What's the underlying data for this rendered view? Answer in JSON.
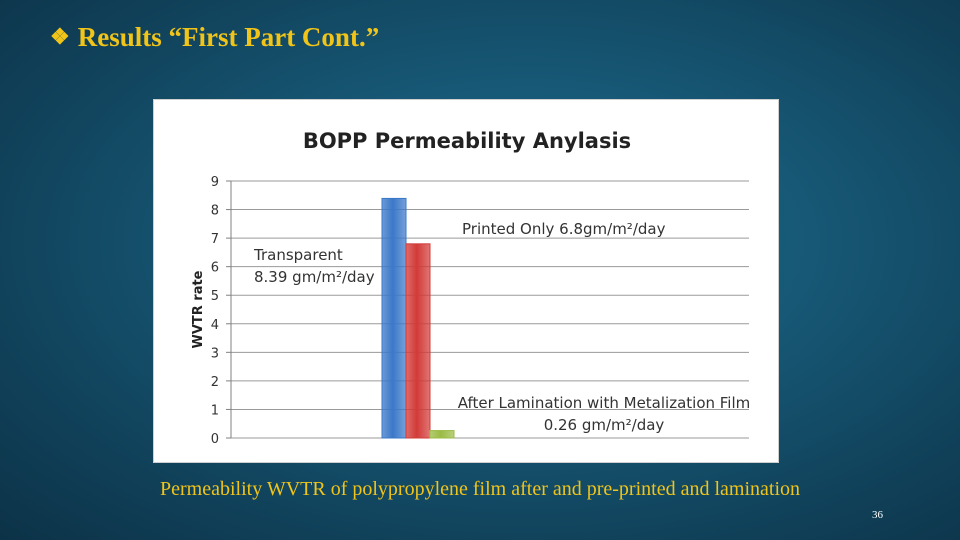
{
  "slide": {
    "bullet_icon": "diamond-bullet-icon",
    "bullet_glyph": "❖",
    "title": "Results “First Part Cont.”",
    "caption": "Permeability WVTR of polypropylene film after and pre-printed and lamination",
    "page_number": "36",
    "title_color": "#f0c419"
  },
  "chart_data": {
    "type": "bar",
    "title": "BOPP Permeability Anylasis",
    "ylabel": "WVTR rate",
    "xlabel": "",
    "ylim": [
      0,
      9
    ],
    "yticks": [
      0,
      1,
      2,
      3,
      4,
      5,
      6,
      7,
      8,
      9
    ],
    "grid": true,
    "series": [
      {
        "values": [
          8.39
        ],
        "color": "#3b78c9"
      },
      {
        "values": [
          6.8
        ],
        "color": "#d23b38"
      },
      {
        "values": [
          0.26
        ],
        "color": "#9bbb45"
      }
    ],
    "annotations": [
      {
        "lines": [
          "Transparent",
          "8.39 gm/m²/day"
        ]
      },
      {
        "lines": [
          "Printed Only  6.8gm/m²/day"
        ]
      },
      {
        "lines": [
          "After Lamination with Metalization Film",
          "0.26 gm/m²/day"
        ]
      }
    ]
  }
}
